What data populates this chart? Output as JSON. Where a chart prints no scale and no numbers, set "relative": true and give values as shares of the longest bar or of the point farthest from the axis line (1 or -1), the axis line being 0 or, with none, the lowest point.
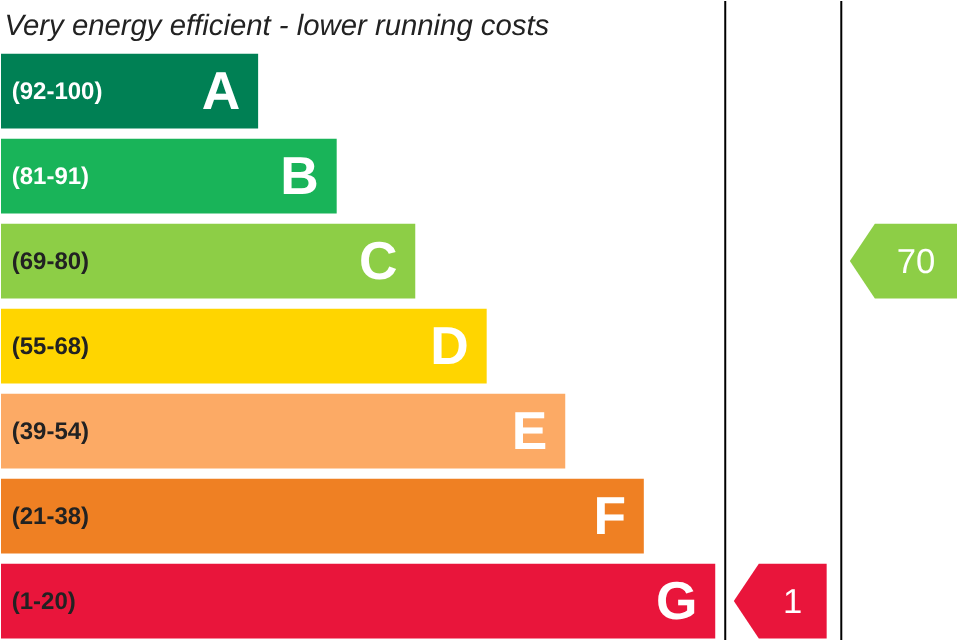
{
  "chart_data": {
    "type": "bar",
    "orientation": "horizontal",
    "relative": true,
    "title": "Very energy efficient - lower running costs",
    "categories": [
      "A",
      "B",
      "C",
      "D",
      "E",
      "F",
      "G"
    ],
    "values": [
      0.36,
      0.47,
      0.58,
      0.68,
      0.79,
      0.9,
      1
    ],
    "colors": [
      "#008054",
      "#19b459",
      "#8dce46",
      "#ffd500",
      "#fcaa65",
      "#ef8023",
      "#e9153b"
    ],
    "annotations": [
      "(92-100)",
      "(81-91)",
      "(69-80)",
      "(55-68)",
      "(39-54)",
      "(21-38)",
      "(1-20)",
      "1",
      "70"
    ]
  }
}
